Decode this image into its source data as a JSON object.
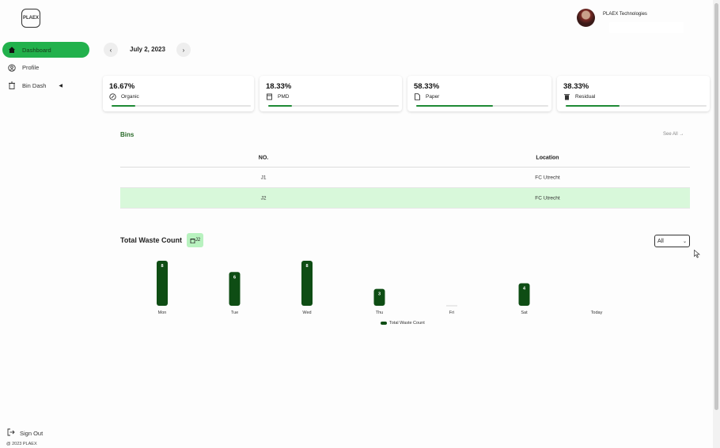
{
  "brand": {
    "logo_text": "PLAEX"
  },
  "sidebar": {
    "items": [
      {
        "label": "Dashboard",
        "icon": "home-icon",
        "active": true
      },
      {
        "label": "Profile",
        "icon": "user-circle-icon",
        "active": false
      },
      {
        "label": "Bin Dash",
        "icon": "trash-icon",
        "active": false
      }
    ],
    "sign_out": "Sign Out",
    "copyright": "@ 2023 PLAEX"
  },
  "header": {
    "company": "PLAEX Technologies"
  },
  "date_nav": {
    "date": "July 2, 2023",
    "prev": "‹",
    "next": "›"
  },
  "cards": [
    {
      "percent": "16.67%",
      "label": "Organic",
      "icon": "leaf-circle-icon",
      "progress": 0.17
    },
    {
      "percent": "18.33%",
      "label": "PMD",
      "icon": "bottle-icon",
      "progress": 0.18
    },
    {
      "percent": "58.33%",
      "label": "Paper",
      "icon": "paper-icon",
      "progress": 0.58
    },
    {
      "percent": "38.33%",
      "label": "Residual",
      "icon": "bin-icon",
      "progress": 0.38
    }
  ],
  "bins": {
    "title": "Bins",
    "see_all": "See All →",
    "columns": [
      "NO.",
      "Location"
    ],
    "rows": [
      {
        "no": "J1",
        "location": "FC Utrecht",
        "highlighted": false
      },
      {
        "no": "J2",
        "location": "FC Utrecht",
        "highlighted": true
      }
    ]
  },
  "waste": {
    "title": "Total Waste Count",
    "badge": "J2",
    "filter": "All"
  },
  "chart_data": {
    "type": "bar",
    "categories": [
      "Mon",
      "Tue",
      "Wed",
      "Thu",
      "Fri",
      "Sat",
      "Today"
    ],
    "series": [
      {
        "name": "Total Waste Count",
        "values": [
          8,
          6,
          8,
          3,
          0,
          4,
          0
        ]
      }
    ],
    "data_labels": [
      "8",
      "6",
      "8",
      "3",
      "",
      "4",
      ""
    ],
    "title": "",
    "xlabel": "",
    "ylabel": "",
    "ylim": [
      0,
      8
    ],
    "grid": false,
    "legend": "bottom",
    "color": "#0e4d14"
  },
  "colors": {
    "accent": "#22b14c",
    "bar": "#0e4d14",
    "progress": "#1e8a35",
    "highlight_row": "#d8f8da"
  }
}
